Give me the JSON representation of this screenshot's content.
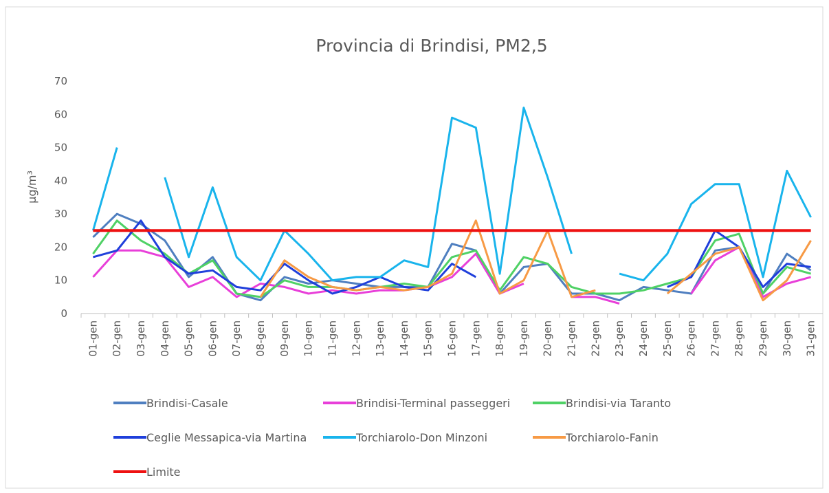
{
  "chart_data": {
    "type": "line",
    "title": "Provincia di Brindisi, PM2,5",
    "y_label": "µg/m³",
    "categories": [
      "01-gen",
      "02-gen",
      "03-gen",
      "04-gen",
      "05-gen",
      "06-gen",
      "07-gen",
      "08-gen",
      "09-gen",
      "10-gen",
      "11-gen",
      "12-gen",
      "13-gen",
      "14-gen",
      "15-gen",
      "16-gen",
      "17-gen",
      "18-gen",
      "19-gen",
      "20-gen",
      "21-gen",
      "22-gen",
      "23-gen",
      "24-gen",
      "25-gen",
      "26-gen",
      "27-gen",
      "28-gen",
      "29-gen",
      "30-gen",
      "31-gen"
    ],
    "ylim": [
      0,
      70
    ],
    "yticks": [
      0,
      10,
      20,
      30,
      40,
      50,
      60,
      70
    ],
    "grid": false,
    "legend": "bottom",
    "series": [
      {
        "name": "Brindisi-Casale",
        "color": "#4f7fc0",
        "values": [
          23,
          30,
          27,
          22,
          11,
          17,
          6,
          4,
          11,
          9,
          10,
          9,
          8,
          8,
          8,
          21,
          19,
          6,
          14,
          15,
          6,
          6,
          4,
          8,
          7,
          6,
          19,
          20,
          6,
          18,
          13
        ]
      },
      {
        "name": "Brindisi-Terminal passeggeri",
        "color": "#e83fd9",
        "values": [
          11,
          19,
          19,
          17,
          8,
          11,
          5,
          9,
          8,
          6,
          7,
          6,
          7,
          7,
          8,
          11,
          18,
          6,
          9,
          null,
          5,
          5,
          3,
          null,
          null,
          6,
          16,
          20,
          5,
          9,
          11
        ]
      },
      {
        "name": "Brindisi-via Taranto",
        "color": "#4fd165",
        "values": [
          18,
          28,
          22,
          18,
          12,
          16,
          6,
          5,
          10,
          8,
          8,
          7,
          8,
          9,
          8,
          17,
          19,
          7,
          17,
          15,
          8,
          6,
          6,
          7,
          9,
          11,
          22,
          24,
          6,
          14,
          12
        ]
      },
      {
        "name": "Ceglie Messapica-via Martina",
        "color": "#1f3fdb",
        "values": [
          17,
          19,
          28,
          17,
          12,
          13,
          8,
          7,
          15,
          10,
          6,
          8,
          11,
          8,
          7,
          15,
          11,
          null,
          null,
          null,
          null,
          null,
          null,
          null,
          8,
          11,
          25,
          20,
          8,
          15,
          14
        ]
      },
      {
        "name": "Torchiarolo-Don Minzoni",
        "color": "#19b4ec",
        "values": [
          25,
          50,
          null,
          41,
          17,
          38,
          17,
          10,
          25,
          18,
          10,
          11,
          11,
          16,
          14,
          59,
          56,
          12,
          62,
          41,
          18,
          null,
          12,
          10,
          18,
          33,
          39,
          39,
          11,
          43,
          29
        ]
      },
      {
        "name": "Torchiarolo-Fanin",
        "color": "#f79a45",
        "values": [
          null,
          null,
          null,
          null,
          null,
          null,
          null,
          5,
          16,
          11,
          8,
          7,
          8,
          7,
          8,
          12,
          28,
          6,
          10,
          25,
          5,
          7,
          null,
          null,
          6,
          12,
          18,
          20,
          4,
          10,
          22
        ]
      },
      {
        "name": "Limite",
        "color": "#ee1111",
        "values": [
          25,
          25,
          25,
          25,
          25,
          25,
          25,
          25,
          25,
          25,
          25,
          25,
          25,
          25,
          25,
          25,
          25,
          25,
          25,
          25,
          25,
          25,
          25,
          25,
          25,
          25,
          25,
          25,
          25,
          25,
          25
        ]
      }
    ]
  }
}
